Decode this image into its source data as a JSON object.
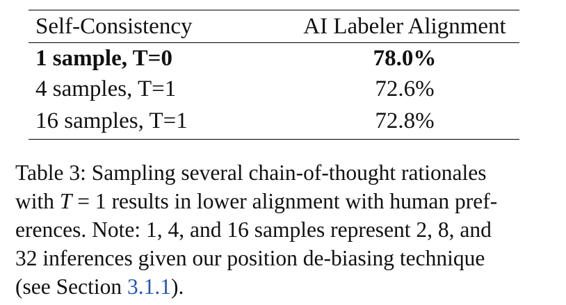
{
  "table": {
    "headers": [
      "Self-Consistency",
      "AI Labeler Alignment"
    ],
    "rows": [
      {
        "setting": "1 sample, T=0",
        "alignment": "78.0%",
        "bold": true
      },
      {
        "setting": "4 samples, T=1",
        "alignment": "72.6%",
        "bold": false
      },
      {
        "setting": "16 samples, T=1",
        "alignment": "72.8%",
        "bold": false
      }
    ]
  },
  "caption": {
    "line1": "Table 3: Sampling several chain-of-thought rationales",
    "line2_pre": "with ",
    "line2_var": "T",
    "line2_eq": " = 1",
    "line2_post": " results in lower alignment with human pref-",
    "line3": "erences. Note: 1, 4, and 16 samples represent 2, 8, and",
    "line4": "32 inferences given our position de-biasing technique",
    "line5_pre": "(see Section ",
    "line5_ref": "3.1.1",
    "line5_post": ")."
  },
  "colors": {
    "text": "#111111",
    "link": "#2255bb"
  }
}
